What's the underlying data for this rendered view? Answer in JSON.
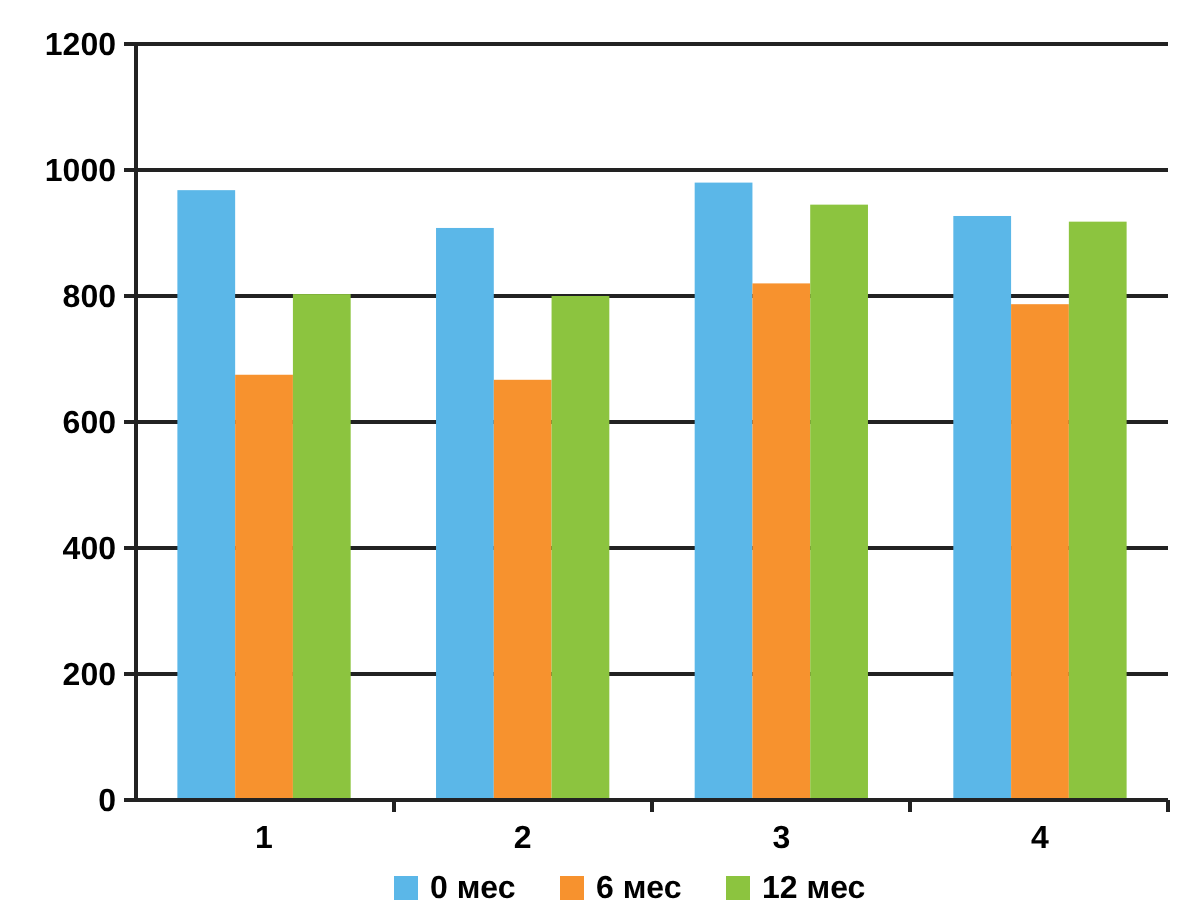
{
  "chart_data": {
    "type": "bar",
    "categories": [
      "1",
      "2",
      "3",
      "4"
    ],
    "series": [
      {
        "name": "0 мес",
        "color": "#5bb7e8",
        "values": [
          968,
          908,
          980,
          927
        ]
      },
      {
        "name": "6 мес",
        "color": "#f7922e",
        "values": [
          675,
          667,
          820,
          787
        ]
      },
      {
        "name": "12 мес",
        "color": "#8cc43f",
        "values": [
          803,
          800,
          945,
          918
        ]
      }
    ],
    "ylim": [
      0,
      1200
    ],
    "yticks": [
      0,
      200,
      400,
      600,
      800,
      1000,
      1200
    ],
    "grid": "y",
    "legend": "bottom"
  }
}
